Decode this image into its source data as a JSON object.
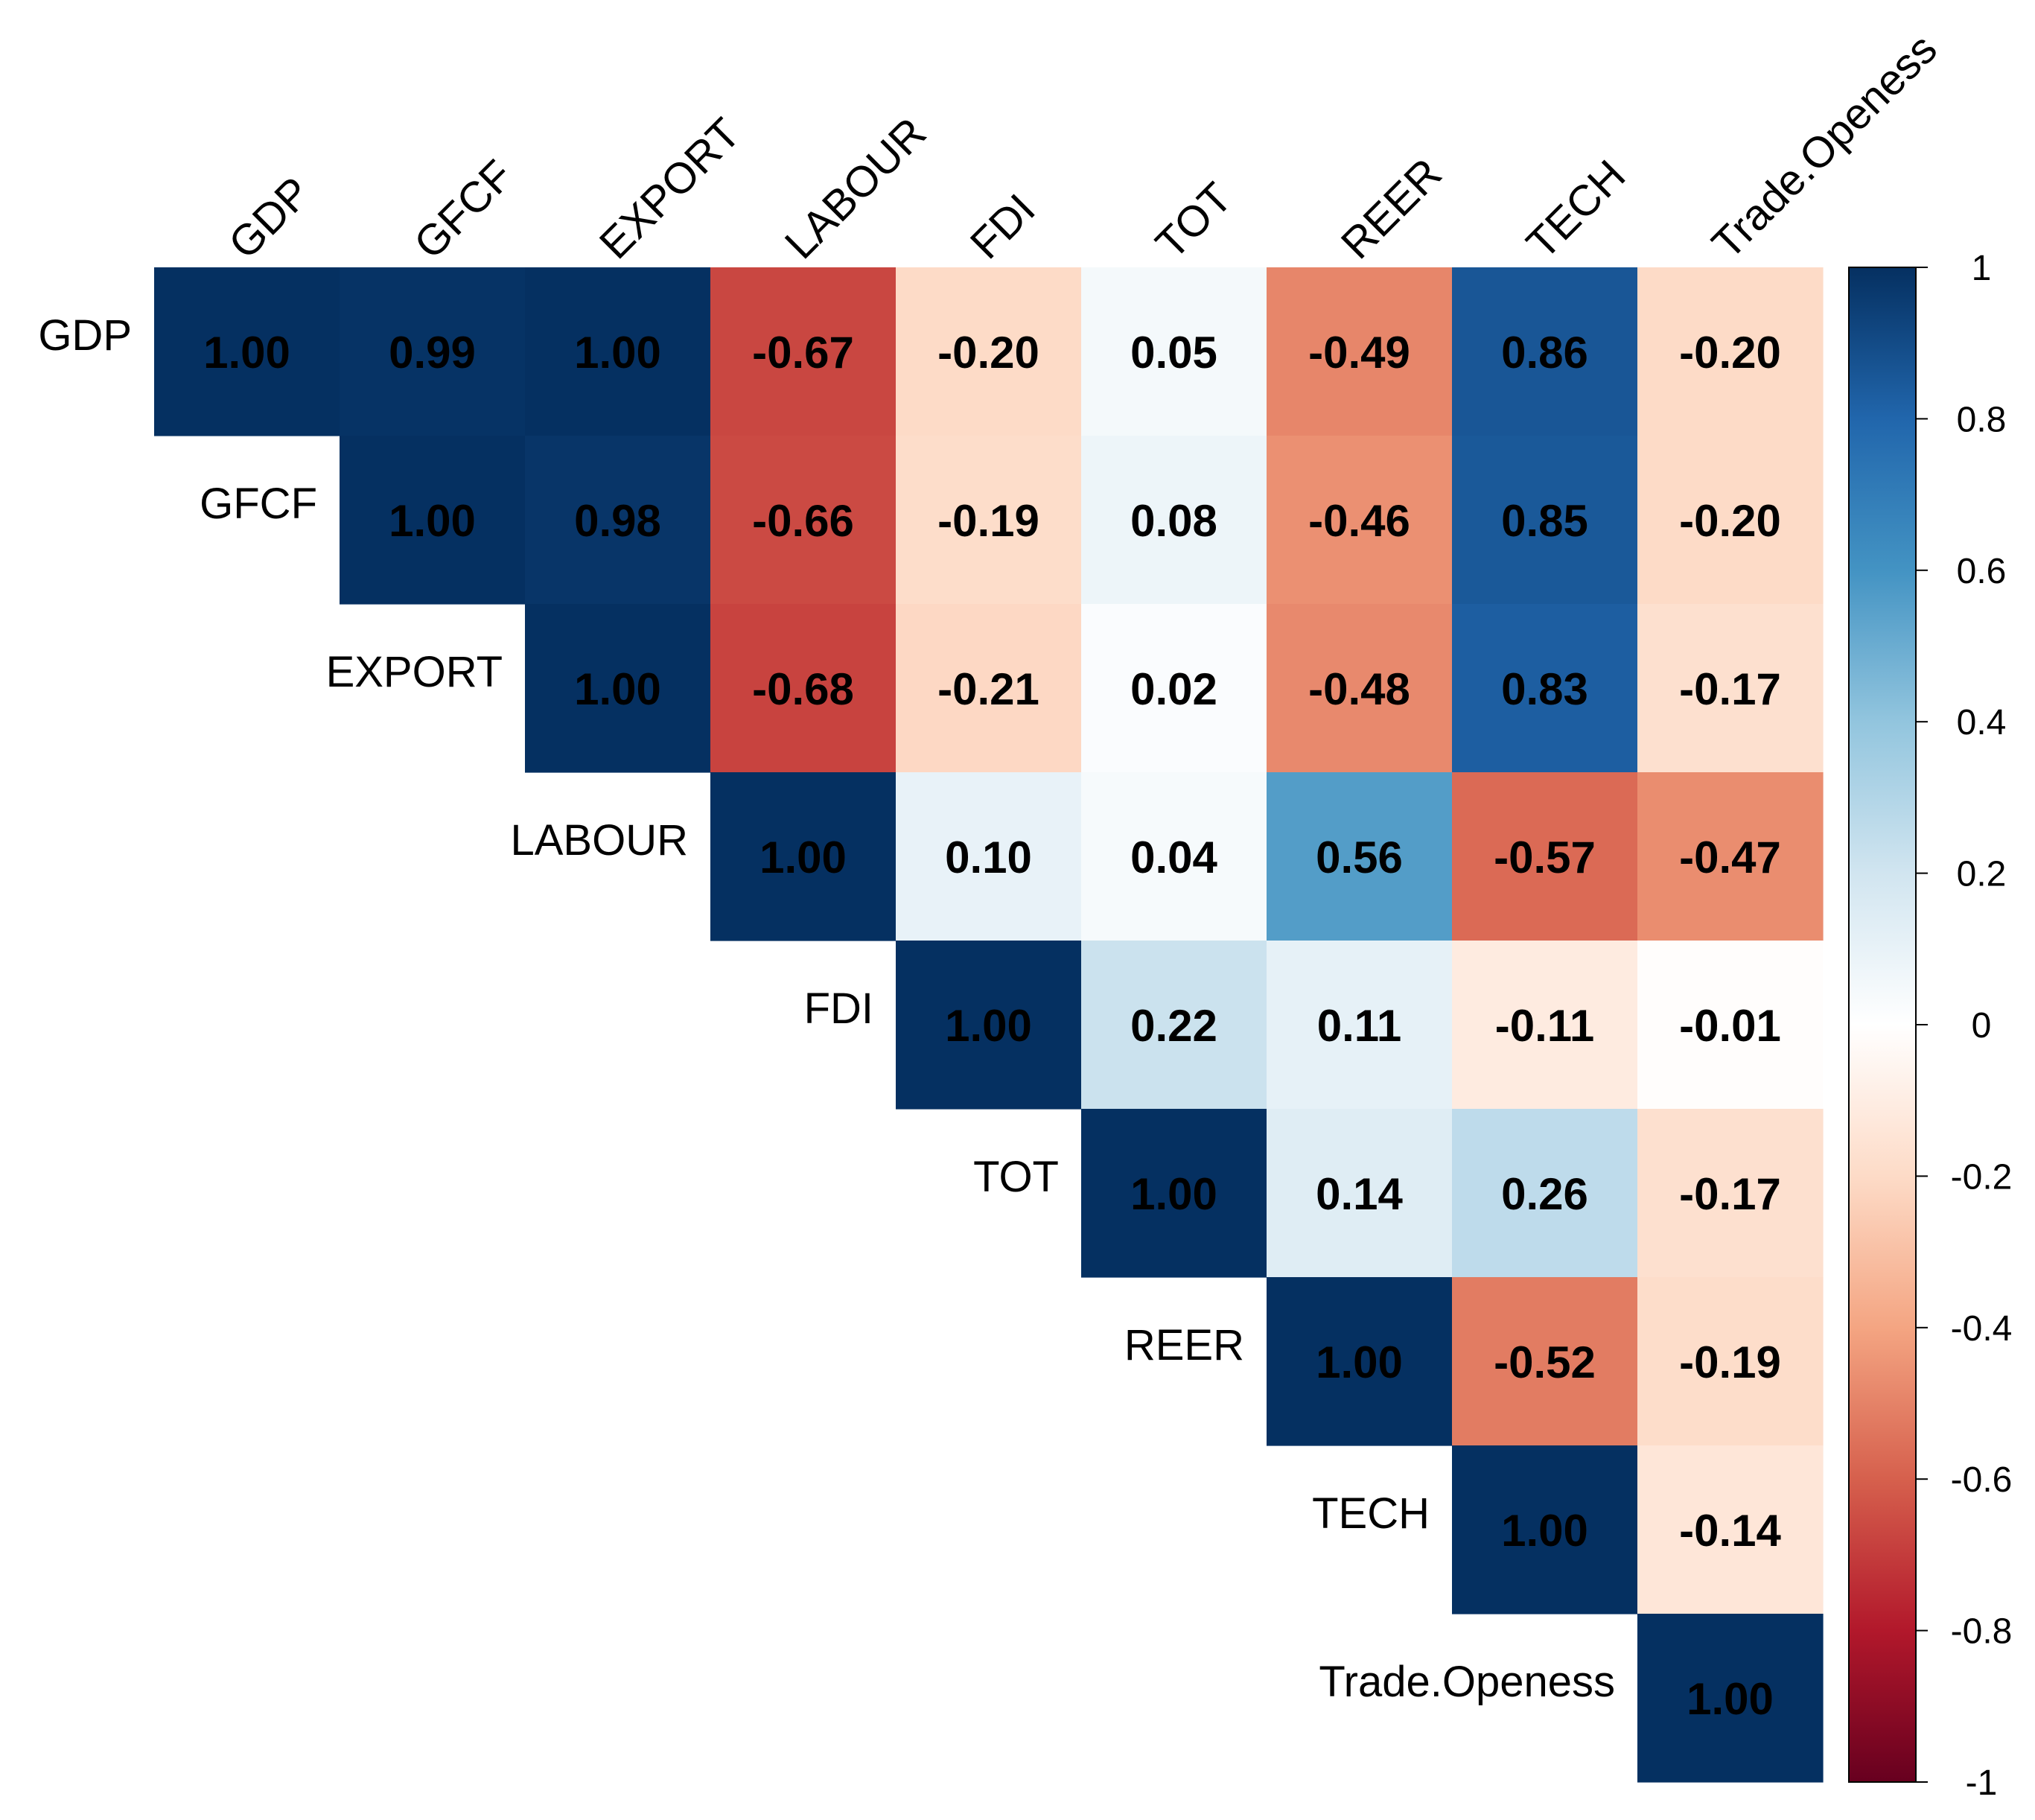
{
  "chart_data": {
    "type": "heatmap",
    "variables": [
      "GDP",
      "GFCF",
      "EXPORT",
      "LABOUR",
      "FDI",
      "TOT",
      "REER",
      "TECH",
      "Trade.Openess"
    ],
    "upper_triangle": [
      [
        "1.00",
        "0.99",
        "1.00",
        "-0.67",
        "-0.20",
        "0.05",
        "-0.49",
        "0.86",
        "-0.20"
      ],
      [
        "1.00",
        "0.98",
        "-0.66",
        "-0.19",
        "0.08",
        "-0.46",
        "0.85",
        "-0.20"
      ],
      [
        "1.00",
        "-0.68",
        "-0.21",
        "0.02",
        "-0.48",
        "0.83",
        "-0.17"
      ],
      [
        "1.00",
        "0.10",
        "0.04",
        "0.56",
        "-0.57",
        "-0.47"
      ],
      [
        "1.00",
        "0.22",
        "0.11",
        "-0.11",
        "-0.01"
      ],
      [
        "1.00",
        "0.14",
        "0.26",
        "-0.17"
      ],
      [
        "1.00",
        "-0.52",
        "-0.19"
      ],
      [
        "1.00",
        "-0.14"
      ],
      [
        "1.00"
      ]
    ],
    "colorbar": {
      "range": [
        -1,
        1
      ],
      "ticks": [
        "1",
        "0.8",
        "0.6",
        "0.4",
        "0.2",
        "0",
        "-0.2",
        "-0.4",
        "-0.6",
        "-0.8",
        "-1"
      ],
      "stops": [
        "#67001F",
        "#B2182B",
        "#D6604D",
        "#F4A582",
        "#FDDBC7",
        "#FFFFFF",
        "#D1E5F0",
        "#92C5DE",
        "#4393C3",
        "#2166AC",
        "#053061"
      ]
    },
    "legend": "right"
  }
}
